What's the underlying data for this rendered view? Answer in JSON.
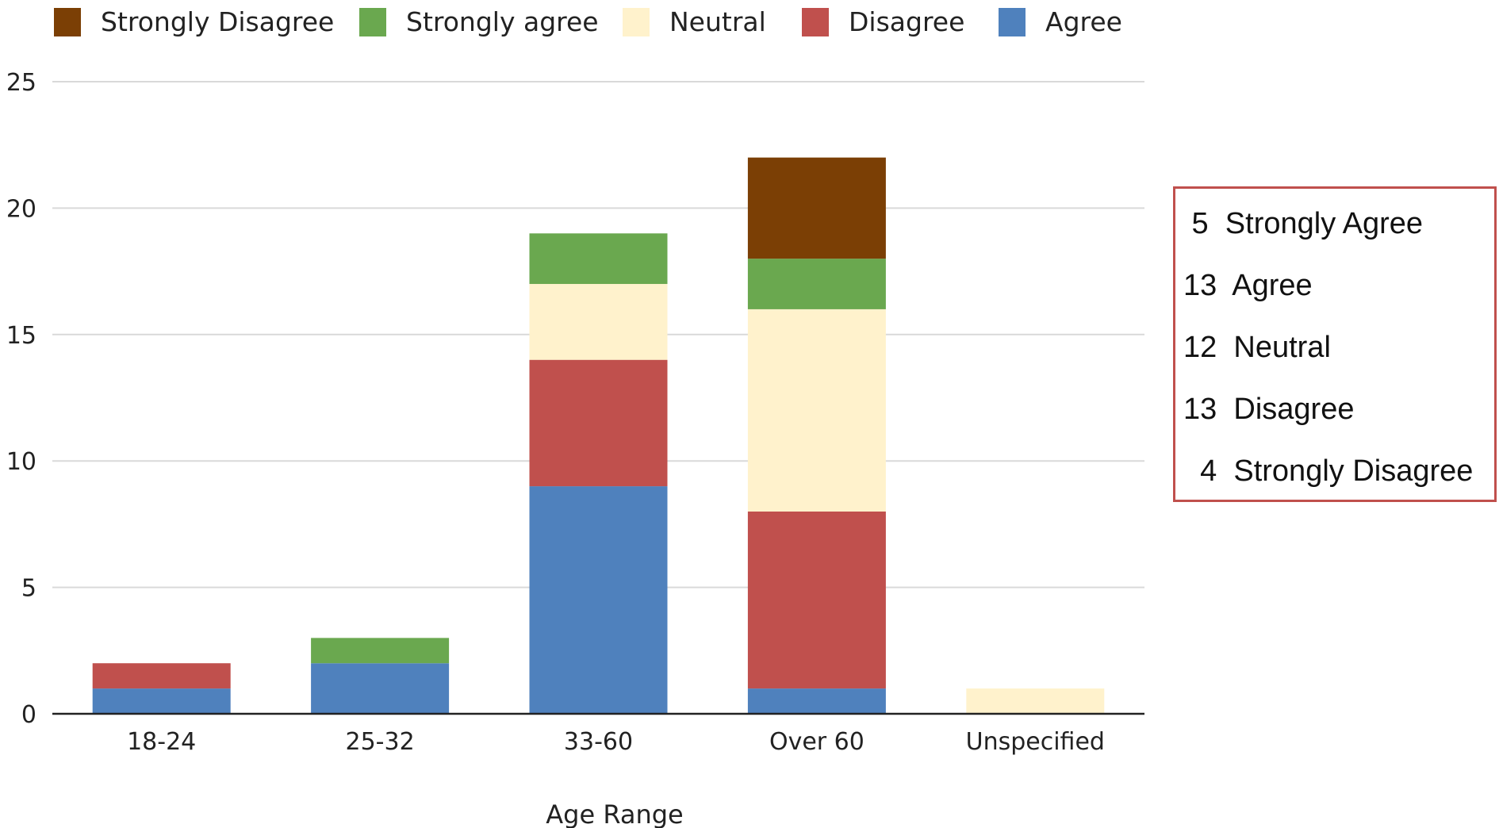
{
  "colors": {
    "Strongly Disagree": "#7b3f05",
    "Strongly agree": "#6aa84f",
    "Neutral": "#fff2cc",
    "Disagree": "#c0504d",
    "Agree": "#4f81bd",
    "gridline": "#d9d9d9",
    "axis": "#222222",
    "summary_border": "#c0504d"
  },
  "chart_data": {
    "type": "bar",
    "stacked": true,
    "categories": [
      "18-24",
      "25-32",
      "33-60",
      "Over 60",
      "Unspecified"
    ],
    "series": [
      {
        "name": "Agree",
        "values": [
          1,
          2,
          9,
          1,
          0
        ]
      },
      {
        "name": "Disagree",
        "values": [
          1,
          0,
          5,
          7,
          0
        ]
      },
      {
        "name": "Neutral",
        "values": [
          0,
          0,
          3,
          8,
          1
        ]
      },
      {
        "name": "Strongly agree",
        "values": [
          0,
          1,
          2,
          2,
          0
        ]
      },
      {
        "name": "Strongly Disagree",
        "values": [
          0,
          0,
          0,
          4,
          0
        ]
      }
    ],
    "legend_order": [
      "Strongly Disagree",
      "Strongly agree",
      "Neutral",
      "Disagree",
      "Agree"
    ],
    "legend_position": "top",
    "xlabel": "Age Range",
    "ylabel": "",
    "ylim": [
      0,
      25
    ],
    "yticks": [
      0,
      5,
      10,
      15,
      20,
      25
    ],
    "grid": true
  },
  "summary_box": {
    "lines": [
      " 5  Strongly Agree",
      "13  Agree",
      "12  Neutral",
      "13  Disagree",
      "  4  Strongly Disagree"
    ]
  }
}
